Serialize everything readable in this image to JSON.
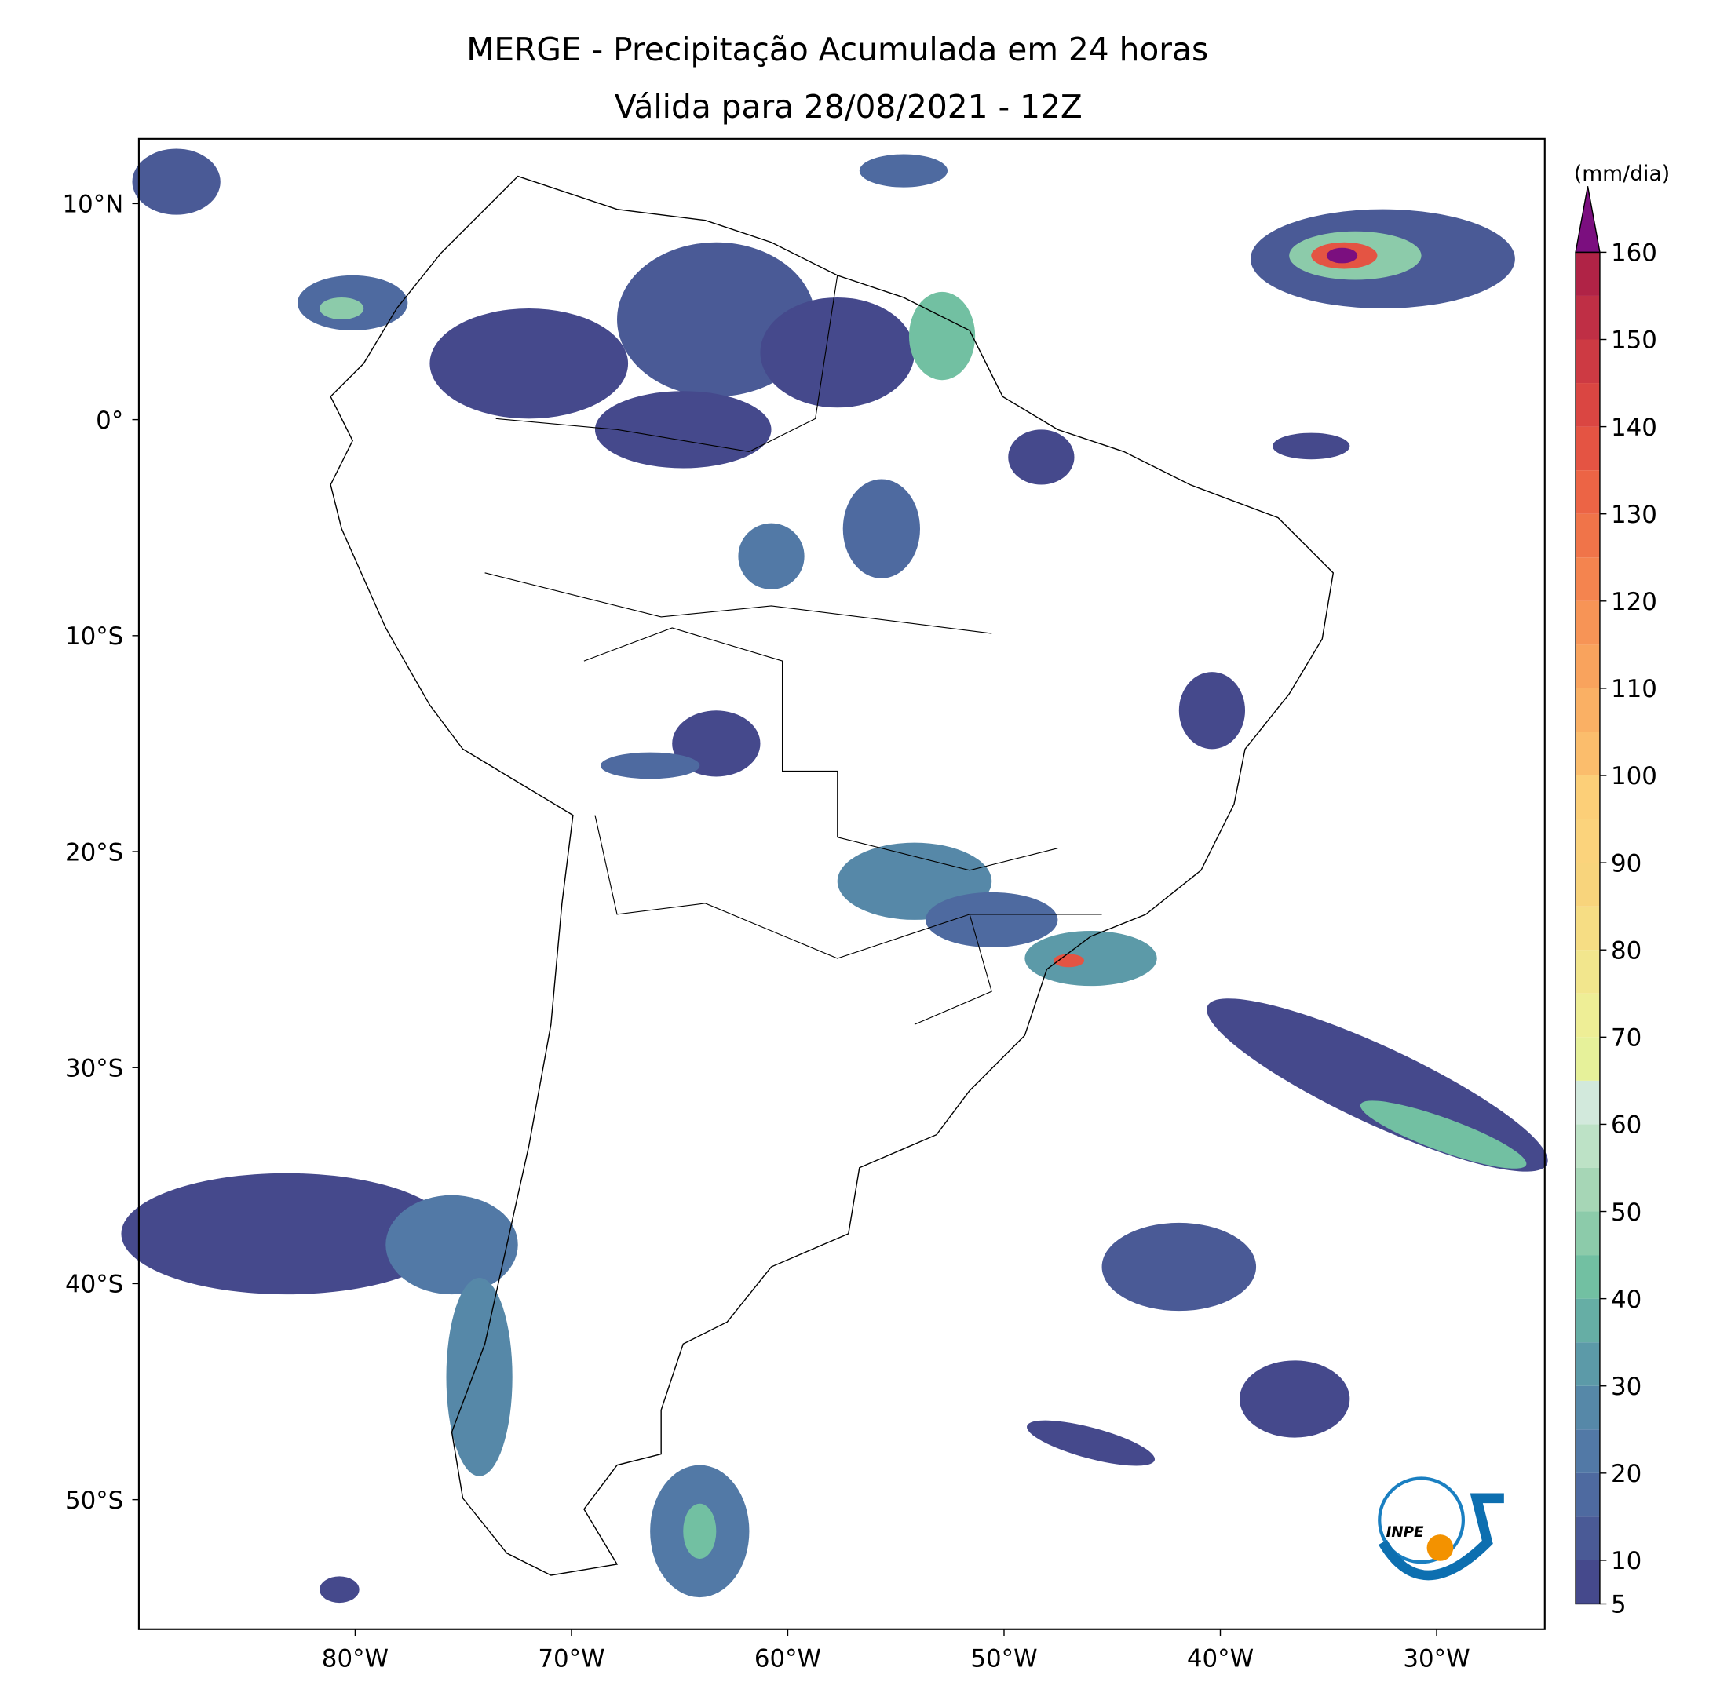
{
  "map": {
    "title": [
      "MERGE - Precipitação Acumulada em 24 horas",
      "Válida para 28/08/2021 - 12Z"
    ],
    "lon_range": [
      -90,
      -25
    ],
    "lat_range": [
      -56,
      13
    ],
    "lat_ticks": [
      {
        "value": 10,
        "label": "10°N"
      },
      {
        "value": 0,
        "label": "0°"
      },
      {
        "value": -10,
        "label": "10°S"
      },
      {
        "value": -20,
        "label": "20°S"
      },
      {
        "value": -30,
        "label": "30°S"
      },
      {
        "value": -40,
        "label": "40°S"
      },
      {
        "value": -50,
        "label": "50°S"
      }
    ],
    "lon_ticks": [
      {
        "value": -80,
        "label": "80°W"
      },
      {
        "value": -70,
        "label": "70°W"
      },
      {
        "value": -60,
        "label": "60°W"
      },
      {
        "value": -50,
        "label": "50°W"
      },
      {
        "value": -40,
        "label": "40°W"
      },
      {
        "value": -30,
        "label": "30°W"
      }
    ],
    "colorbar": {
      "label": "(mm/dia)",
      "levels": [
        5,
        10,
        15,
        20,
        25,
        30,
        35,
        40,
        45,
        50,
        55,
        60,
        65,
        70,
        75,
        80,
        85,
        90,
        95,
        100,
        105,
        110,
        115,
        120,
        125,
        130,
        135,
        140,
        145,
        150,
        155,
        160
      ],
      "colors": [
        "#45498c",
        "#4a5a96",
        "#4e6aa0",
        "#5279a6",
        "#5688a8",
        "#5c9aa8",
        "#66aea5",
        "#72c0a2",
        "#8ccbaa",
        "#a6d6b6",
        "#bde2c6",
        "#d2e9dc",
        "#e6f19a",
        "#eeee96",
        "#f2e68d",
        "#f6dd84",
        "#f8d47c",
        "#fbd37c",
        "#fccf78",
        "#fbbd6c",
        "#fab064",
        "#f9a35d",
        "#f79456",
        "#f4844f",
        "#f07449",
        "#ec6445",
        "#e45443",
        "#da4642",
        "#cd3a43",
        "#bf2f45",
        "#b02346"
      ],
      "extend_color": "#7b0f7f",
      "ticks": [
        5,
        10,
        20,
        30,
        40,
        50,
        60,
        70,
        80,
        90,
        100,
        110,
        120,
        130,
        140,
        150,
        160
      ]
    },
    "logo_text": "INPE"
  }
}
